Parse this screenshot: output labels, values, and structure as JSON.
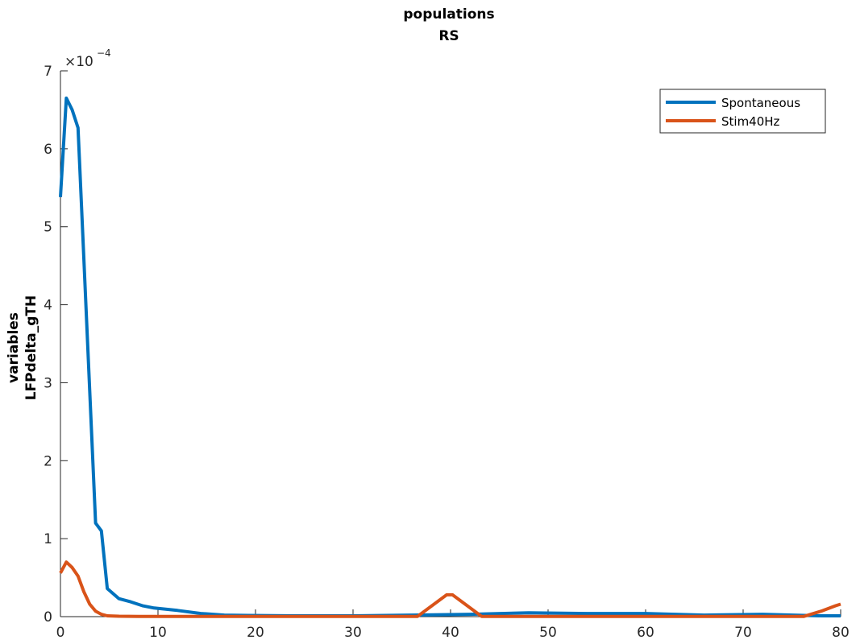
{
  "chart_data": {
    "type": "line",
    "title": [
      "populations",
      "RS"
    ],
    "ylabel": [
      "variables",
      "LFPdelta_gTH"
    ],
    "xlabel": "",
    "xlim": [
      0,
      80
    ],
    "ylim": [
      0,
      0.0007
    ],
    "xticks": [
      0,
      10,
      20,
      30,
      40,
      50,
      60,
      70,
      80
    ],
    "xtick_labels": [
      "0",
      "10",
      "20",
      "30",
      "40",
      "50",
      "60",
      "70",
      "80"
    ],
    "yticks": [
      0,
      0.0001,
      0.0002,
      0.0003,
      0.0004,
      0.0005,
      0.0006,
      0.0007
    ],
    "ytick_labels": [
      "0",
      "1",
      "2",
      "3",
      "4",
      "5",
      "6",
      "7"
    ],
    "y_exponent_base": "×10",
    "y_exponent_power": "−4",
    "grid": false,
    "legend_position": "top-right",
    "series": [
      {
        "name": "Spontaneous",
        "color": "#0072BD",
        "x": [
          0,
          0.6,
          1.2,
          1.8,
          2.4,
          3.0,
          3.6,
          4.2,
          4.8,
          6.0,
          7.2,
          8.4,
          9.6,
          12.0,
          14.4,
          16.8,
          19.2,
          24,
          30,
          36,
          42,
          48,
          54,
          60,
          66,
          72,
          78,
          80
        ],
        "y": [
          0.000538,
          0.000665,
          0.00065,
          0.000627,
          0.00046,
          0.00029,
          0.00012,
          0.00011,
          3.6e-05,
          2.3e-05,
          1.9e-05,
          1.4e-05,
          1.1e-05,
          8e-06,
          4e-06,
          2e-06,
          1.5e-06,
          1e-06,
          1e-06,
          2e-06,
          3e-06,
          5e-06,
          4e-06,
          4e-06,
          2e-06,
          3e-06,
          1e-06,
          1e-06
        ]
      },
      {
        "name": "Stim40Hz",
        "color": "#D95319",
        "x": [
          0,
          0.6,
          1.2,
          1.8,
          2.4,
          3.0,
          3.6,
          4.2,
          4.8,
          6.0,
          8.0,
          12.0,
          20,
          30,
          36.6,
          39.6,
          40.2,
          43.2,
          50,
          60,
          70,
          76.2,
          78,
          79.5,
          80
        ],
        "y": [
          5.6e-05,
          7e-05,
          6.3e-05,
          5.2e-05,
          3.2e-05,
          1.6e-05,
          7e-06,
          3e-06,
          1e-06,
          5e-07,
          3e-07,
          2e-07,
          2e-07,
          2e-07,
          2e-07,
          2.8e-05,
          2.8e-05,
          2e-07,
          2e-07,
          2e-07,
          2e-07,
          2e-07,
          7e-06,
          1.4e-05,
          1.6e-05
        ]
      }
    ]
  }
}
